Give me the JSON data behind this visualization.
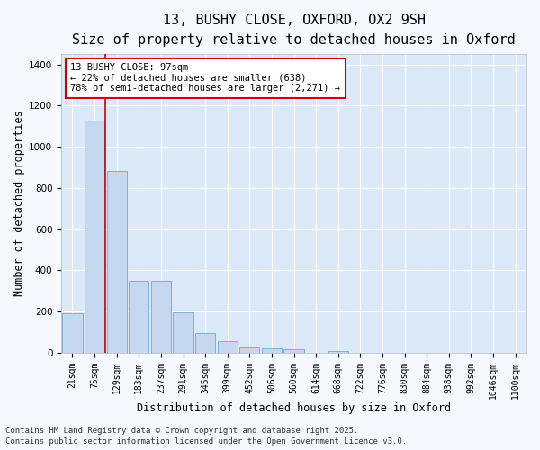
{
  "title_line1": "13, BUSHY CLOSE, OXFORD, OX2 9SH",
  "title_line2": "Size of property relative to detached houses in Oxford",
  "xlabel": "Distribution of detached houses by size in Oxford",
  "ylabel": "Number of detached properties",
  "categories": [
    "21sqm",
    "75sqm",
    "129sqm",
    "183sqm",
    "237sqm",
    "291sqm",
    "345sqm",
    "399sqm",
    "452sqm",
    "506sqm",
    "560sqm",
    "614sqm",
    "668sqm",
    "722sqm",
    "776sqm",
    "830sqm",
    "884sqm",
    "938sqm",
    "992sqm",
    "1046sqm",
    "1100sqm"
  ],
  "values": [
    193,
    1130,
    883,
    350,
    350,
    197,
    97,
    57,
    25,
    20,
    17,
    0,
    10,
    0,
    0,
    0,
    0,
    0,
    0,
    0,
    0
  ],
  "bar_color": "#c5d8f0",
  "bar_edge_color": "#6aaad4",
  "vline_x": 1.5,
  "annotation_text": "13 BUSHY CLOSE: 97sqm\n← 22% of detached houses are smaller (638)\n78% of semi-detached houses are larger (2,271) →",
  "annotation_box_facecolor": "#ffffff",
  "annotation_box_edgecolor": "#cc0000",
  "vline_color": "#cc0000",
  "plot_bg_color": "#dce9f8",
  "fig_bg_color": "#f5f8ff",
  "grid_color": "#ffffff",
  "ylim": [
    0,
    1450
  ],
  "yticks": [
    0,
    200,
    400,
    600,
    800,
    1000,
    1200,
    1400
  ],
  "footer_line1": "Contains HM Land Registry data © Crown copyright and database right 2025.",
  "footer_line2": "Contains public sector information licensed under the Open Government Licence v3.0.",
  "title_fontsize": 11,
  "subtitle_fontsize": 9.5,
  "axis_label_fontsize": 8.5,
  "tick_fontsize": 7,
  "annotation_fontsize": 7.5,
  "footer_fontsize": 6.5
}
